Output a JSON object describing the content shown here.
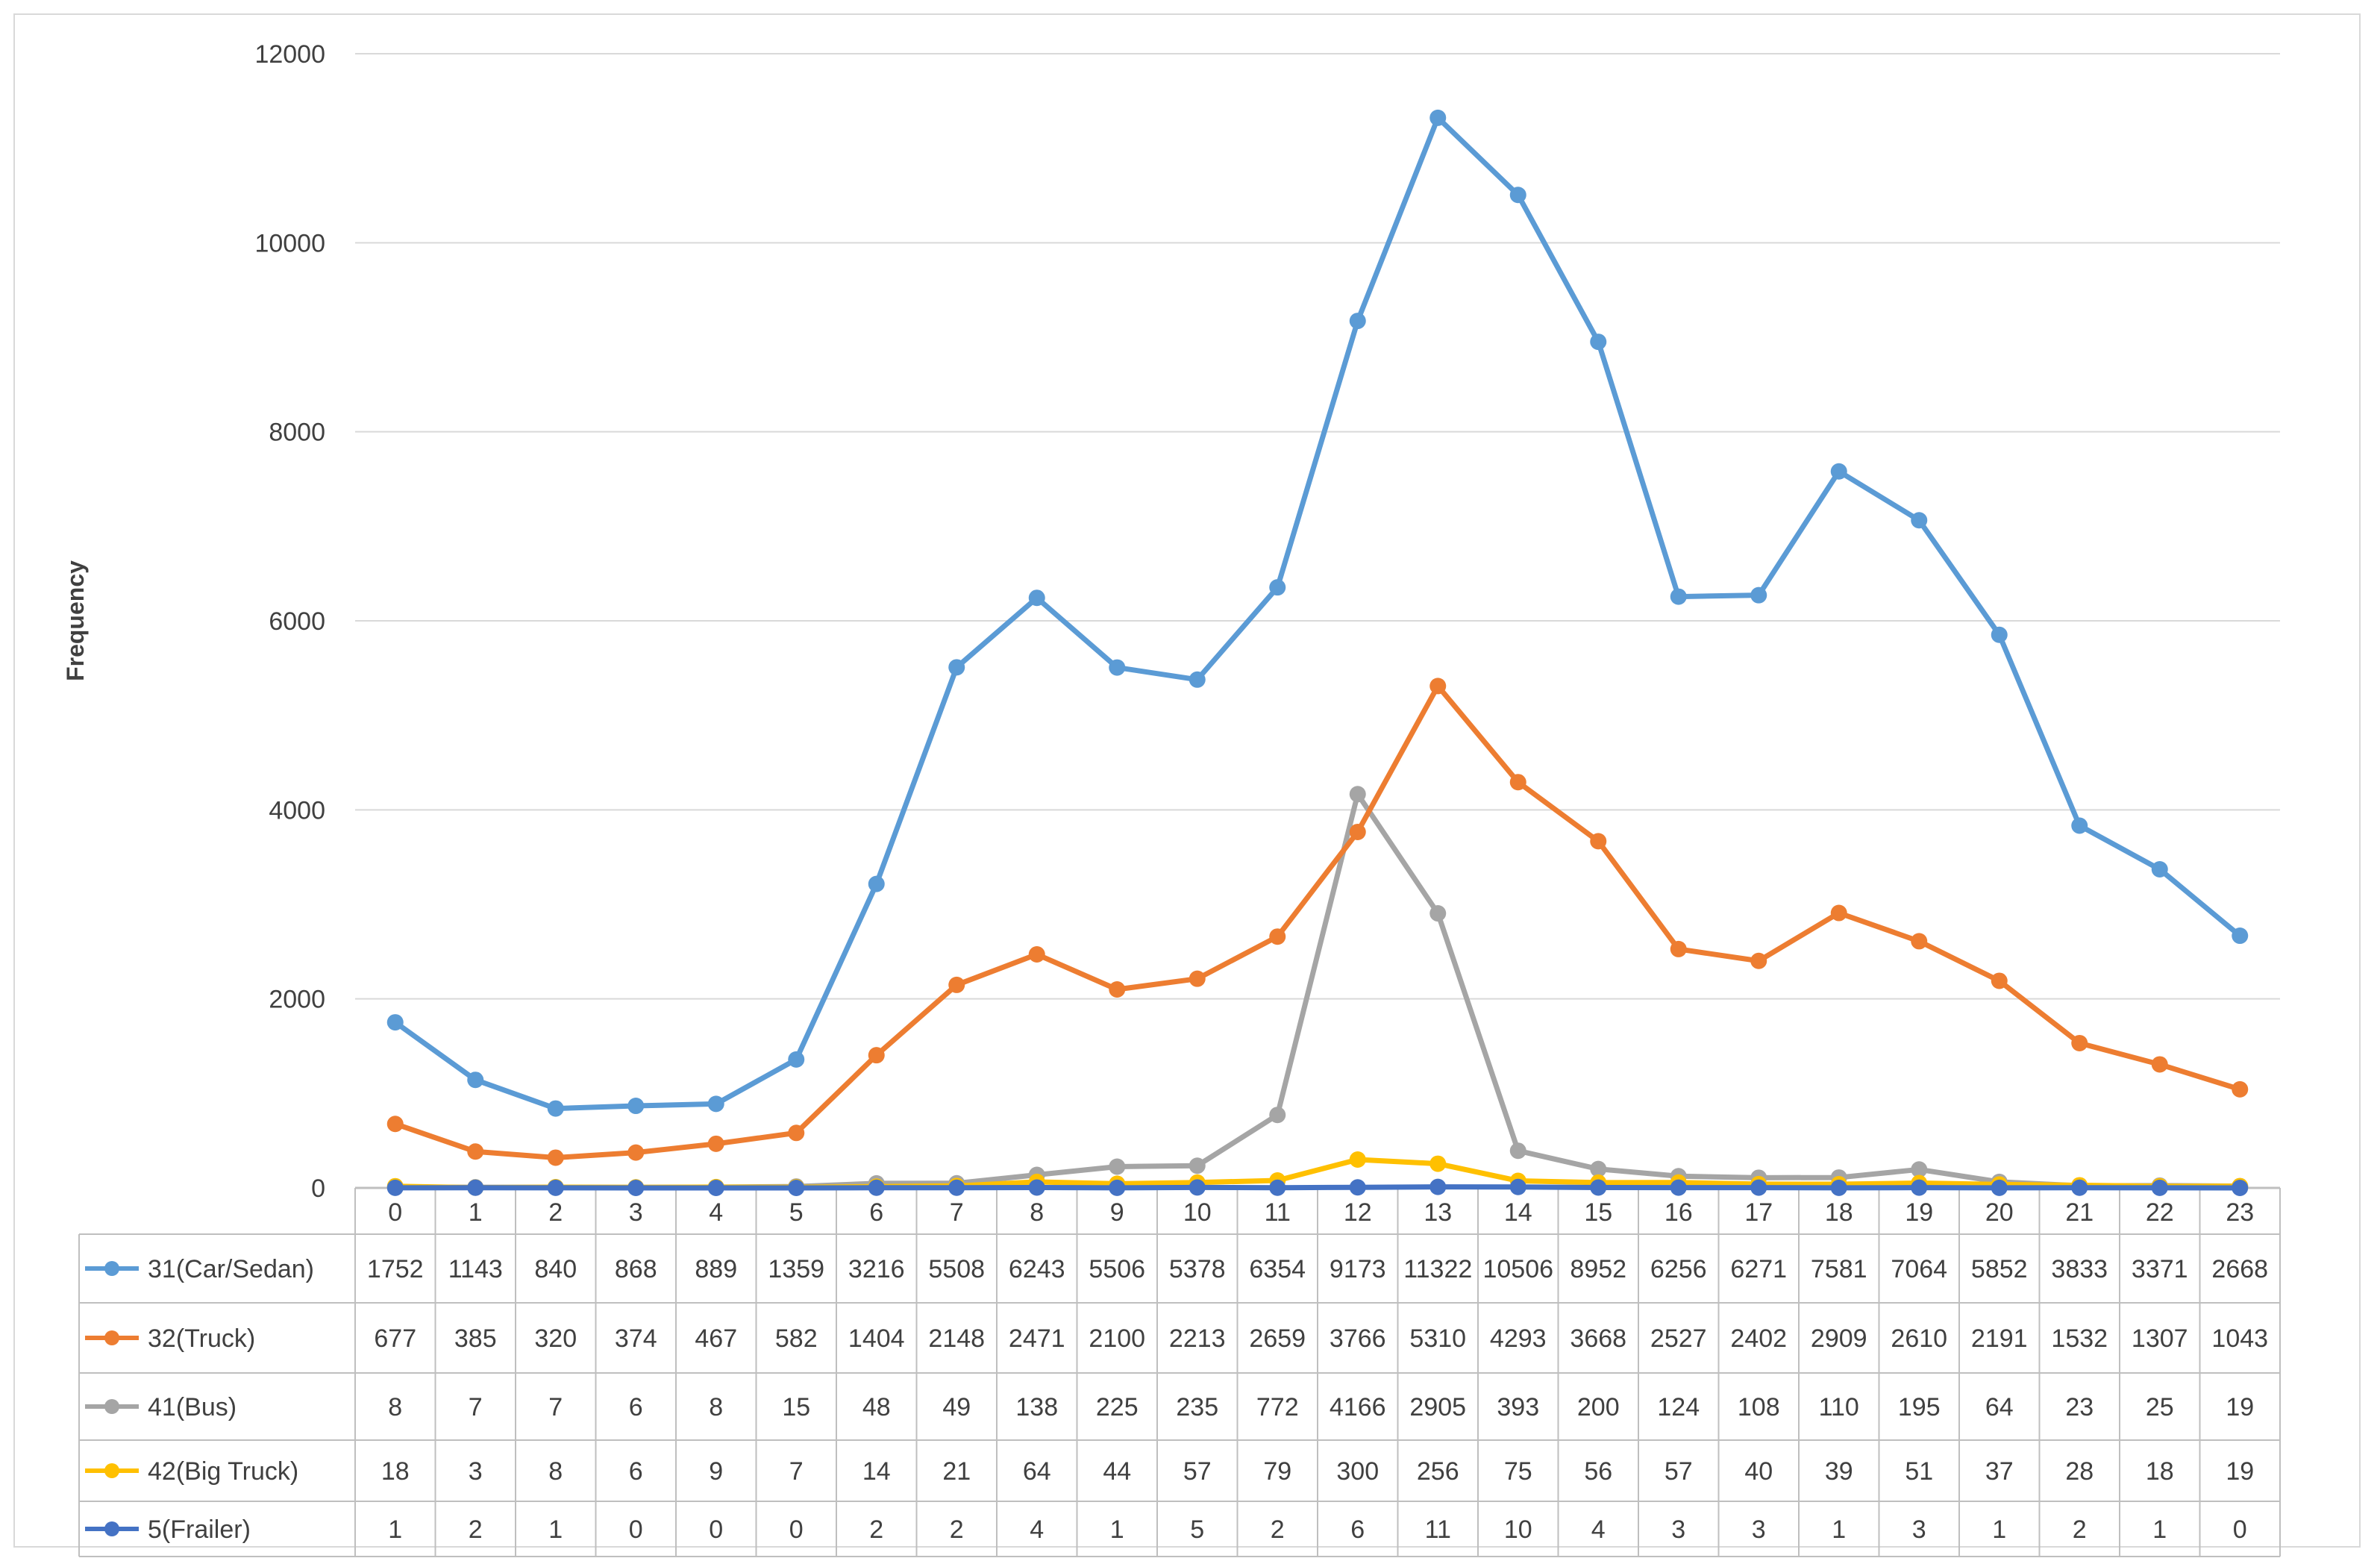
{
  "chart_data": {
    "type": "line",
    "title": "",
    "xlabel": "",
    "ylabel": "Frequency",
    "ylim": [
      0,
      12000
    ],
    "yticks": [
      0,
      2000,
      4000,
      6000,
      8000,
      10000,
      12000
    ],
    "grid": true,
    "legend": "data-table",
    "categories": [
      "0",
      "1",
      "2",
      "3",
      "4",
      "5",
      "6",
      "7",
      "8",
      "9",
      "10",
      "11",
      "12",
      "13",
      "14",
      "15",
      "16",
      "17",
      "18",
      "19",
      "20",
      "21",
      "22",
      "23"
    ],
    "series": [
      {
        "name": "31(Car/Sedan)",
        "color": "#5b9bd5",
        "values": [
          1752,
          1143,
          840,
          868,
          889,
          1359,
          3216,
          5508,
          6243,
          5506,
          5378,
          6354,
          9173,
          11322,
          10506,
          8952,
          6256,
          6271,
          7581,
          7064,
          5852,
          3833,
          3371,
          2668
        ]
      },
      {
        "name": "32(Truck)",
        "color": "#ed7d31",
        "values": [
          677,
          385,
          320,
          374,
          467,
          582,
          1404,
          2148,
          2471,
          2100,
          2213,
          2659,
          3766,
          5310,
          4293,
          3668,
          2527,
          2402,
          2909,
          2610,
          2191,
          1532,
          1307,
          1043
        ]
      },
      {
        "name": "41(Bus)",
        "color": "#a5a5a5",
        "values": [
          8,
          7,
          7,
          6,
          8,
          15,
          48,
          49,
          138,
          225,
          235,
          772,
          4166,
          2905,
          393,
          200,
          124,
          108,
          110,
          195,
          64,
          23,
          25,
          19
        ]
      },
      {
        "name": "42(Big Truck)",
        "color": "#ffc000",
        "values": [
          18,
          3,
          8,
          6,
          9,
          7,
          14,
          21,
          64,
          44,
          57,
          79,
          300,
          256,
          75,
          56,
          57,
          40,
          39,
          51,
          37,
          28,
          18,
          19
        ]
      },
      {
        "name": "5(Frailer)",
        "color": "#4472c4",
        "values": [
          1,
          2,
          1,
          0,
          0,
          0,
          2,
          2,
          4,
          1,
          5,
          2,
          6,
          11,
          10,
          4,
          3,
          3,
          1,
          3,
          1,
          2,
          1,
          0
        ]
      }
    ]
  }
}
